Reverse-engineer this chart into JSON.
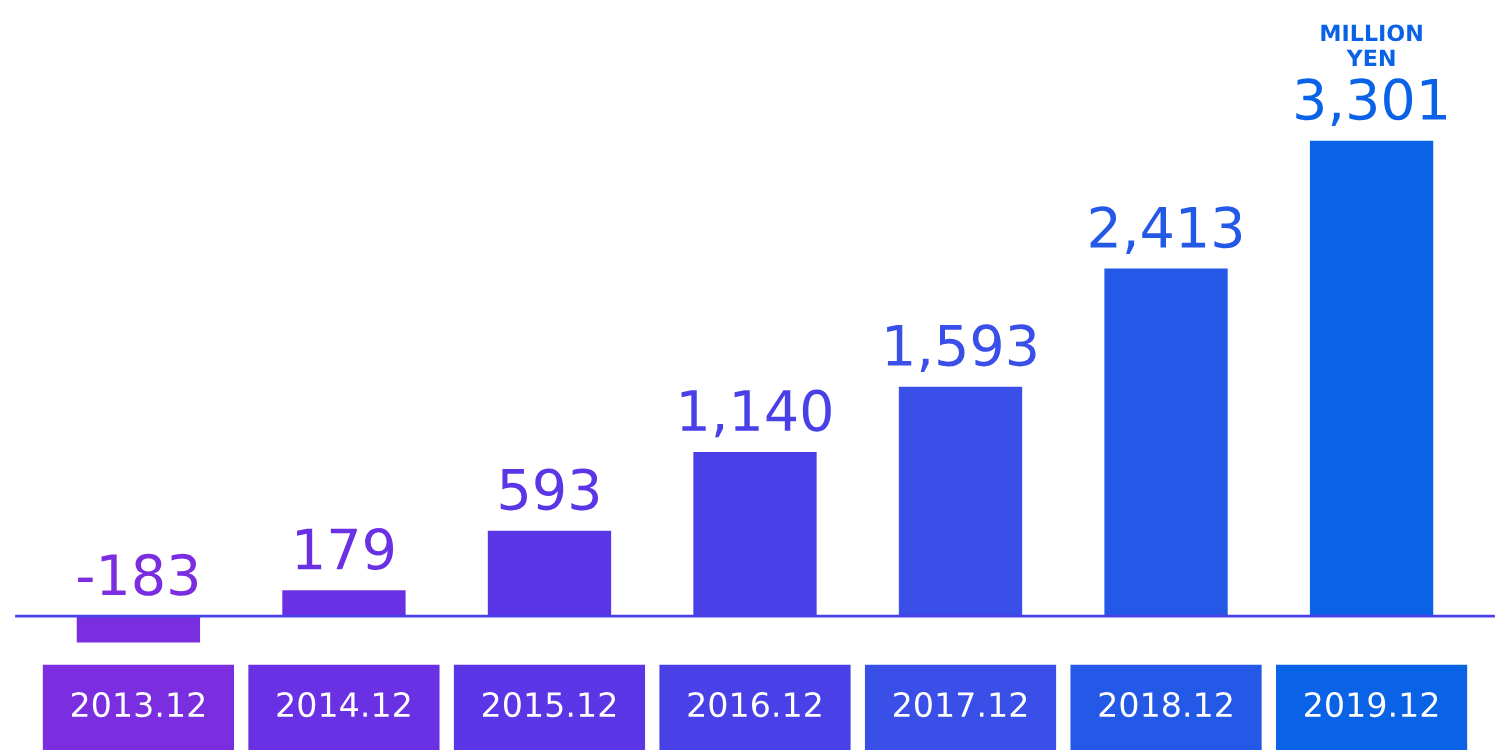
{
  "chart_data": {
    "type": "bar",
    "categories": [
      "2013.12",
      "2014.12",
      "2015.12",
      "2016.12",
      "2017.12",
      "2018.12",
      "2019.12"
    ],
    "values": [
      -183,
      179,
      593,
      1140,
      1593,
      2413,
      3301
    ],
    "value_labels": [
      "-183",
      "179",
      "593",
      "1,140",
      "1,593",
      "2,413",
      "3,301"
    ],
    "colors": [
      "#7a2ee0",
      "#6a30e4",
      "#5a36e6",
      "#4a40e8",
      "#3a4ee8",
      "#2458e6",
      "#0a62e6"
    ],
    "annotations": [
      "MILLION YEN"
    ]
  }
}
